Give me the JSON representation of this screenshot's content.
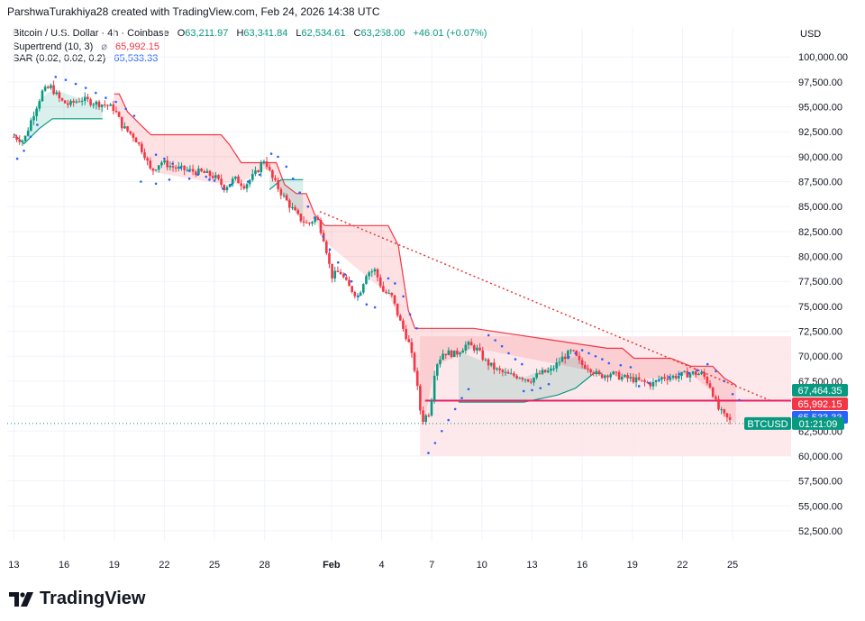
{
  "header": {
    "credit": "ParshwaTurakhiya28 created with TradingView.com, Feb 24, 2026 14:38 UTC"
  },
  "legend": {
    "symbol": "Bitcoin / U.S. Dollar · 4h · Coinbase",
    "open_label": "O",
    "open": "63,211.97",
    "high_label": "H",
    "high": "63,341.84",
    "low_label": "L",
    "low": "62,534.61",
    "close_label": "C",
    "close": "63,258.00",
    "change": "+46.01 (+0.07%)",
    "supertrend_label": "Supertrend (10, 3)",
    "supertrend_value": "65,992.15",
    "sar_label": "SAR (0.02, 0.02, 0.2)",
    "sar_value": "65,533.33",
    "eye_icon": "eye-slash-icon"
  },
  "colors": {
    "up": "#089981",
    "down": "#f23645",
    "sar": "#2962ff",
    "supertrend_up": "#089981",
    "supertrend_down": "#f23645",
    "box_fill": "#fde7ea",
    "support_line": "#e91e63",
    "trendline": "#e53935"
  },
  "brand": {
    "name": "TradingView",
    "logo_icon": "tradingview-logo-icon"
  },
  "chart_data": {
    "type": "candlestick",
    "currency": "USD",
    "y_ticks": [
      "100,000.00",
      "97,500.00",
      "95,000.00",
      "92,500.00",
      "90,000.00",
      "87,500.00",
      "85,000.00",
      "82,500.00",
      "80,000.00",
      "77,500.00",
      "75,000.00",
      "72,500.00",
      "70,000.00",
      "67,500.00",
      "65,000.00",
      "62,500.00",
      "60,000.00",
      "57,500.00",
      "55,000.00",
      "52,500.00"
    ],
    "y_tick_values": [
      100000,
      97500,
      95000,
      92500,
      90000,
      87500,
      85000,
      82500,
      80000,
      77500,
      75000,
      72500,
      70000,
      67500,
      65000,
      62500,
      60000,
      57500,
      55000,
      52500
    ],
    "ylim": [
      51500,
      103000
    ],
    "x_ticks": [
      "13",
      "16",
      "19",
      "22",
      "25",
      "28",
      "Feb",
      "4",
      "7",
      "10",
      "13",
      "16",
      "19",
      "22",
      "25"
    ],
    "x_tick_days": [
      0,
      3,
      6,
      9,
      12,
      15,
      19,
      22,
      25,
      28,
      31,
      34,
      37,
      40,
      43
    ],
    "xlim_days": [
      -0.4,
      46.5
    ],
    "price_labels": [
      {
        "text": "67,464.35",
        "value": 67464.35,
        "color": "#089981"
      },
      {
        "text": "65,992.15",
        "value": 65992.15,
        "color": "#f23645"
      },
      {
        "text": "65,533.33",
        "value": 65533.33,
        "color": "#2962ff"
      }
    ],
    "current": {
      "symbol": "BTCUSD",
      "countdown": "01:21:09",
      "value": 63258.0
    },
    "close_path": [
      [
        0,
        92000
      ],
      [
        0.6,
        91600
      ],
      [
        1.1,
        94000
      ],
      [
        1.7,
        96500
      ],
      [
        2.2,
        97000
      ],
      [
        2.8,
        95600
      ],
      [
        3.3,
        95200
      ],
      [
        4,
        95800
      ],
      [
        4.8,
        95400
      ],
      [
        5.5,
        95200
      ],
      [
        6,
        94800
      ],
      [
        6.5,
        93000
      ],
      [
        7.2,
        92000
      ],
      [
        7.8,
        90300
      ],
      [
        8.2,
        88500
      ],
      [
        8.8,
        89500
      ],
      [
        9.6,
        88900
      ],
      [
        10.5,
        88600
      ],
      [
        11.3,
        88400
      ],
      [
        12,
        88000
      ],
      [
        12.6,
        86900
      ],
      [
        13.2,
        87800
      ],
      [
        13.8,
        87100
      ],
      [
        14.5,
        88400
      ],
      [
        15,
        89800
      ],
      [
        15.4,
        88000
      ],
      [
        15.9,
        86600
      ],
      [
        16.5,
        85100
      ],
      [
        17.1,
        83800
      ],
      [
        17.6,
        83200
      ],
      [
        18.1,
        84000
      ],
      [
        18.6,
        81500
      ],
      [
        19,
        78000
      ],
      [
        19.5,
        78500
      ],
      [
        20,
        77000
      ],
      [
        20.6,
        76000
      ],
      [
        21.1,
        78400
      ],
      [
        21.6,
        78600
      ],
      [
        22.1,
        76500
      ],
      [
        22.6,
        76000
      ],
      [
        23.1,
        73500
      ],
      [
        23.6,
        71500
      ],
      [
        24,
        68500
      ],
      [
        24.4,
        63500
      ],
      [
        24.9,
        64500
      ],
      [
        25.2,
        69000
      ],
      [
        25.7,
        70400
      ],
      [
        26.4,
        70200
      ],
      [
        27.1,
        71200
      ],
      [
        27.7,
        70700
      ],
      [
        28.2,
        69500
      ],
      [
        28.9,
        68600
      ],
      [
        29.6,
        68100
      ],
      [
        30.3,
        68000
      ],
      [
        30.9,
        67600
      ],
      [
        31.5,
        68300
      ],
      [
        32.1,
        68500
      ],
      [
        32.8,
        69800
      ],
      [
        33.4,
        70500
      ],
      [
        33.9,
        69200
      ],
      [
        34.4,
        68900
      ],
      [
        35,
        68000
      ],
      [
        35.7,
        68300
      ],
      [
        36.3,
        67900
      ],
      [
        37,
        67700
      ],
      [
        37.6,
        67400
      ],
      [
        38.2,
        67200
      ],
      [
        38.8,
        67900
      ],
      [
        39.3,
        67900
      ],
      [
        39.9,
        68100
      ],
      [
        40.6,
        68300
      ],
      [
        41.2,
        68200
      ],
      [
        41.7,
        66900
      ],
      [
        42.1,
        64800
      ],
      [
        42.5,
        64000
      ],
      [
        43,
        63258
      ]
    ],
    "supertrend_up_path": [
      [
        0,
        92300
      ],
      [
        0.6,
        91300
      ],
      [
        1.5,
        92800
      ],
      [
        2.3,
        93800
      ],
      [
        4.5,
        93800
      ],
      [
        5.3,
        93800
      ]
    ],
    "supertrend_down_path": [
      [
        6,
        96300
      ],
      [
        6.3,
        96300
      ],
      [
        6.8,
        94500
      ],
      [
        7.7,
        93000
      ],
      [
        8.2,
        92200
      ],
      [
        12.4,
        92200
      ],
      [
        12.9,
        91200
      ],
      [
        13.6,
        89400
      ],
      [
        14.5,
        89400
      ],
      [
        15.2,
        89400
      ],
      [
        15.7,
        89400
      ],
      [
        16.2,
        87200
      ],
      [
        16.9,
        86300
      ],
      [
        17.5,
        86300
      ],
      [
        18,
        84200
      ],
      [
        18.6,
        83100
      ],
      [
        22.4,
        83100
      ],
      [
        23,
        81100
      ],
      [
        23.6,
        74600
      ],
      [
        24,
        72800
      ],
      [
        24.6,
        72800
      ],
      [
        25.2,
        72800
      ],
      [
        27.5,
        72800
      ],
      [
        35.5,
        70800
      ],
      [
        36.4,
        70800
      ],
      [
        37.1,
        69800
      ],
      [
        39.3,
        69800
      ],
      [
        40.5,
        69000
      ],
      [
        41.8,
        69000
      ],
      [
        42.5,
        67800
      ],
      [
        43.2,
        67100
      ]
    ],
    "supertrend_up_path_2": [
      [
        15.3,
        86700
      ],
      [
        16,
        87700
      ],
      [
        17.3,
        87700
      ]
    ],
    "supertrend_up_path_3": [
      [
        26.6,
        65400
      ],
      [
        30.5,
        65400
      ],
      [
        32.5,
        66100
      ],
      [
        33.6,
        66800
      ],
      [
        34.7,
        68300
      ],
      [
        35.2,
        68300
      ]
    ],
    "sar_points": [
      [
        0.2,
        89800
      ],
      [
        0.6,
        90600
      ],
      [
        1,
        92000
      ],
      [
        1.4,
        93200
      ],
      [
        2.5,
        98000
      ],
      [
        3.1,
        97700
      ],
      [
        3.7,
        97300
      ],
      [
        4.3,
        96900
      ],
      [
        4.9,
        96400
      ],
      [
        5.5,
        95900
      ],
      [
        6.1,
        95500
      ],
      [
        6.7,
        94800
      ],
      [
        7.2,
        94100
      ],
      [
        8.5,
        90200
      ],
      [
        9,
        89800
      ],
      [
        9.5,
        89300
      ],
      [
        10,
        88900
      ],
      [
        10.5,
        88600
      ],
      [
        11,
        88200
      ],
      [
        11.5,
        88000
      ],
      [
        7.6,
        87500
      ],
      [
        8.5,
        87300
      ],
      [
        9.3,
        87700
      ],
      [
        10.5,
        87800
      ],
      [
        11.7,
        87700
      ],
      [
        12,
        87600
      ],
      [
        12.5,
        86800
      ],
      [
        13,
        87200
      ],
      [
        14,
        87500
      ],
      [
        14.7,
        88200
      ],
      [
        15.4,
        90300
      ],
      [
        15.8,
        90000
      ],
      [
        16.3,
        89000
      ],
      [
        16.7,
        87800
      ],
      [
        17.1,
        86400
      ],
      [
        17.6,
        85000
      ],
      [
        18,
        83900
      ],
      [
        18.5,
        82000
      ],
      [
        18.9,
        80700
      ],
      [
        19.4,
        79400
      ],
      [
        19.8,
        78200
      ],
      [
        20.2,
        77500
      ],
      [
        20.6,
        76000
      ],
      [
        21.1,
        75200
      ],
      [
        21.6,
        74900
      ],
      [
        22.4,
        77800
      ],
      [
        22.8,
        77300
      ],
      [
        23.3,
        76000
      ],
      [
        23.7,
        74200
      ],
      [
        24.1,
        72800
      ],
      [
        24.8,
        60300
      ],
      [
        25.2,
        61300
      ],
      [
        25.6,
        62500
      ],
      [
        26,
        63600
      ],
      [
        26.4,
        64700
      ],
      [
        26.8,
        65800
      ],
      [
        27.2,
        66700
      ],
      [
        28.4,
        72100
      ],
      [
        28.8,
        71600
      ],
      [
        29.2,
        71000
      ],
      [
        29.6,
        70300
      ],
      [
        30,
        69700
      ],
      [
        30.4,
        69200
      ],
      [
        30.5,
        66500
      ],
      [
        31,
        66600
      ],
      [
        31.5,
        66800
      ],
      [
        32,
        67200
      ],
      [
        33.2,
        69900
      ],
      [
        33.6,
        70300
      ],
      [
        34,
        70600
      ],
      [
        34.4,
        70300
      ],
      [
        34.8,
        70000
      ],
      [
        35.2,
        69700
      ],
      [
        35.6,
        69300
      ],
      [
        36.3,
        69100
      ],
      [
        36.9,
        68900
      ],
      [
        37.4,
        67000
      ],
      [
        38,
        67300
      ],
      [
        38.6,
        67600
      ],
      [
        39.2,
        67900
      ],
      [
        39.8,
        68200
      ],
      [
        40.4,
        68300
      ],
      [
        40.9,
        68600
      ],
      [
        41.5,
        69200
      ],
      [
        42,
        68500
      ],
      [
        42.5,
        67500
      ],
      [
        43,
        66200
      ],
      [
        43.4,
        65600
      ]
    ],
    "range_box": {
      "day_from": 24.3,
      "day_to": 47.5,
      "high": 72000,
      "low": 60000
    },
    "support_line": {
      "day_from": 24.6,
      "day_to": 47.5,
      "value": 65550
    },
    "trendline": {
      "from": [
        18.3,
        84500
      ],
      "to": [
        45.2,
        65600
      ]
    },
    "current_line_value": 63258.0
  }
}
